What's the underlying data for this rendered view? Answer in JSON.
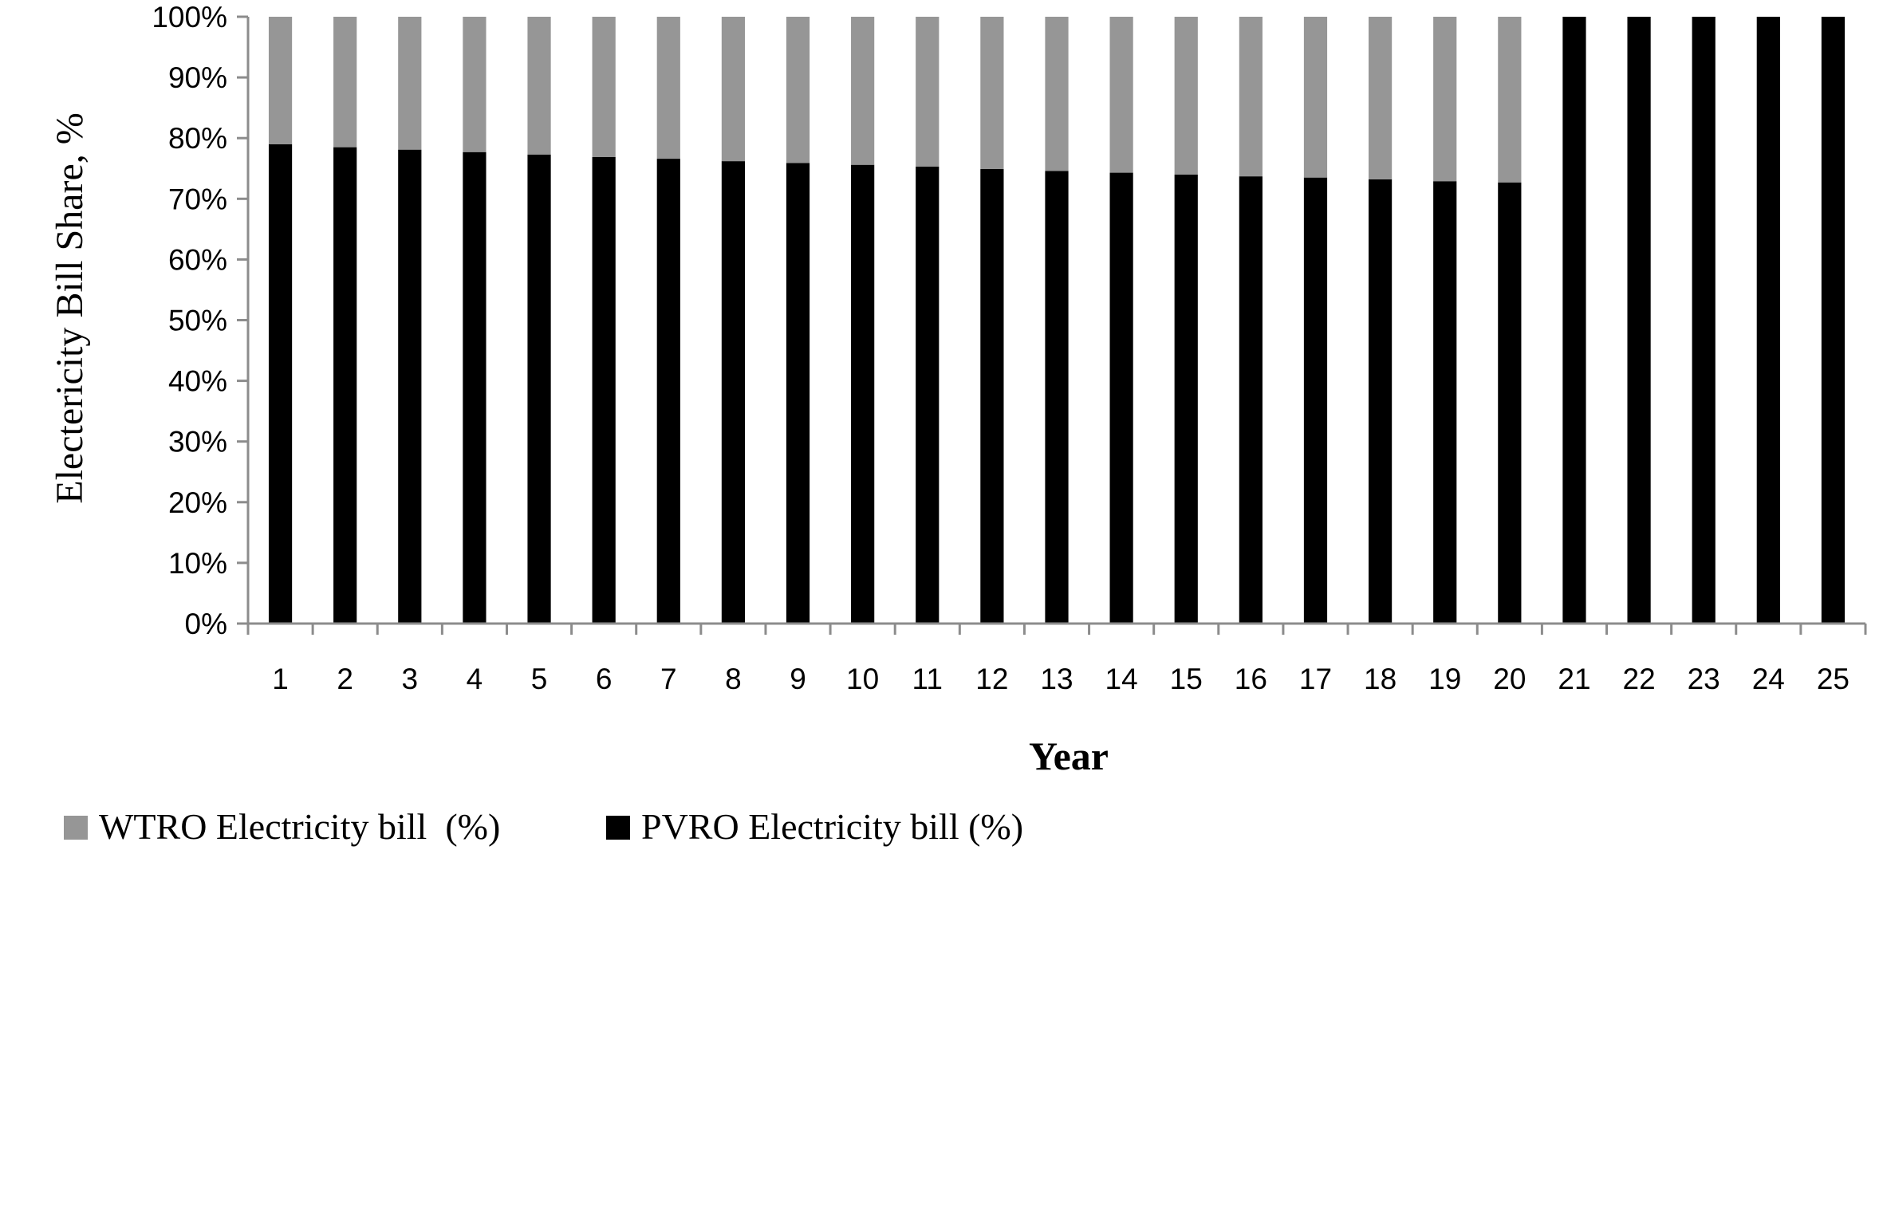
{
  "chart_data": {
    "type": "bar",
    "stacked": true,
    "percent_stacked": true,
    "xlabel": "Year",
    "ylabel": "Electericity Bill Share,  %",
    "ylim": [
      0,
      100
    ],
    "yticks": [
      "0%",
      "10%",
      "20%",
      "30%",
      "40%",
      "50%",
      "60%",
      "70%",
      "80%",
      "90%",
      "100%"
    ],
    "grid": false,
    "legend_position": "bottom-left",
    "categories": [
      "1",
      "2",
      "3",
      "4",
      "5",
      "6",
      "7",
      "8",
      "9",
      "10",
      "11",
      "12",
      "13",
      "14",
      "15",
      "16",
      "17",
      "18",
      "19",
      "20",
      "21",
      "22",
      "23",
      "24",
      "25"
    ],
    "series": [
      {
        "name": "PVRO Electricity bill (%)",
        "color": "#000000",
        "values": [
          79.0,
          78.5,
          78.1,
          77.7,
          77.3,
          76.9,
          76.6,
          76.2,
          75.9,
          75.6,
          75.3,
          74.9,
          74.6,
          74.3,
          74.0,
          73.7,
          73.5,
          73.2,
          72.9,
          72.7,
          100,
          100,
          100,
          100,
          100
        ]
      },
      {
        "name": "WTRO Electricity bill  (%)",
        "color": "#969696",
        "values": [
          21.0,
          21.5,
          21.9,
          22.3,
          22.7,
          23.1,
          23.4,
          23.8,
          24.1,
          24.4,
          24.7,
          25.1,
          25.4,
          25.7,
          26.0,
          26.3,
          26.5,
          26.8,
          27.1,
          27.3,
          0,
          0,
          0,
          0,
          0
        ]
      }
    ],
    "legend_order": [
      "WTRO Electricity bill  (%)",
      "PVRO Electricity bill (%)"
    ]
  }
}
